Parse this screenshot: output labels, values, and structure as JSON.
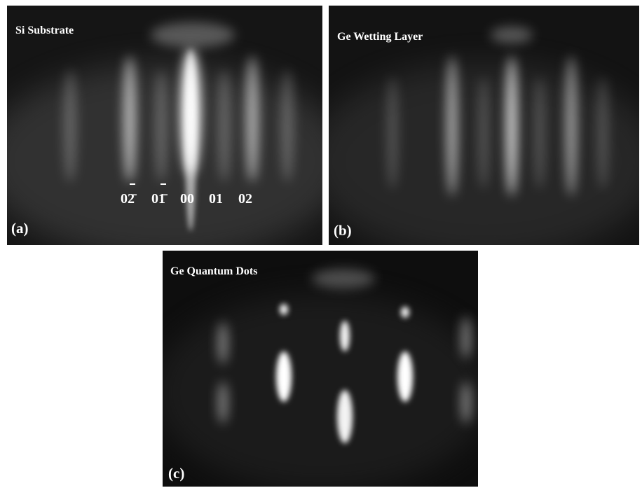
{
  "panels": [
    {
      "title": "Si Substrate",
      "label": "(a)",
      "indices": [
        "02̄",
        "01̄",
        "00",
        "01",
        "02"
      ]
    },
    {
      "title": "Ge Wetting Layer",
      "label": "(b)"
    },
    {
      "title": "Ge Quantum Dots",
      "label": "(c)"
    }
  ]
}
